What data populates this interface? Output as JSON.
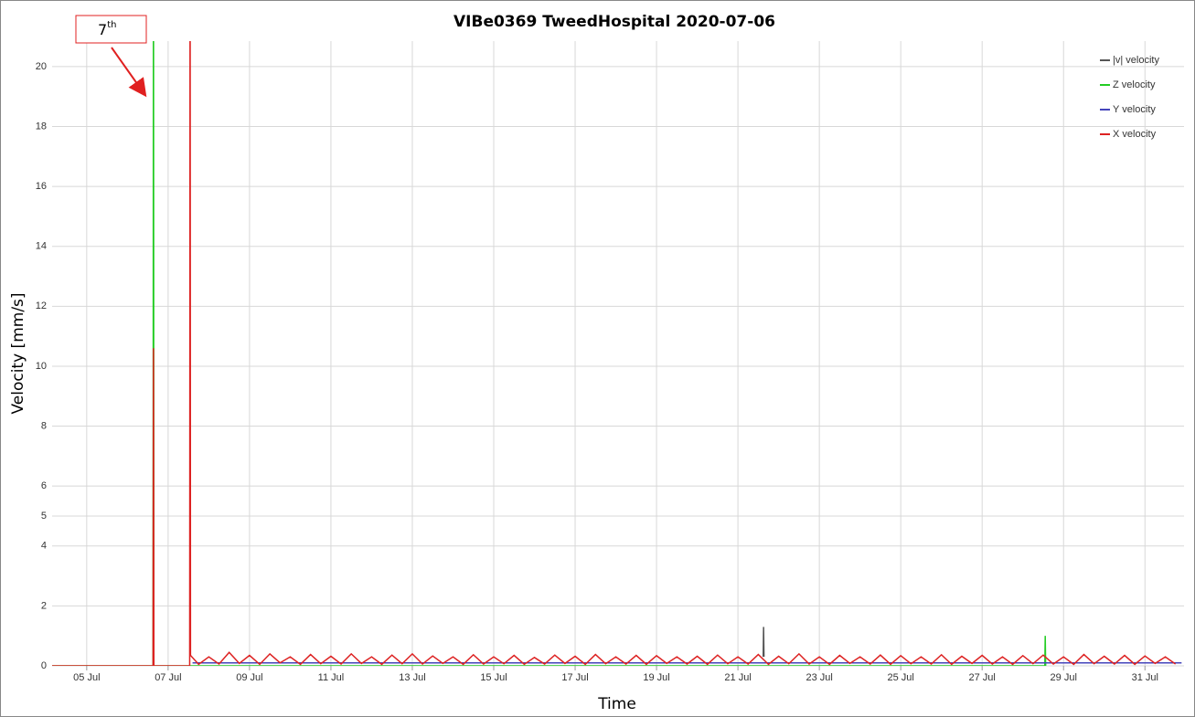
{
  "chart_data": {
    "type": "line",
    "title": "VIBe0369 TweedHospital 2020-07-06",
    "x_label": "Time",
    "y_label": "Velocity [mm/s]",
    "xlim": [
      4.15,
      31.96
    ],
    "ylim": [
      0,
      20.85
    ],
    "xticks": [
      {
        "value": 5,
        "label": "05 Jul"
      },
      {
        "value": 7,
        "label": "07 Jul"
      },
      {
        "value": 9,
        "label": "09 Jul"
      },
      {
        "value": 11,
        "label": "11 Jul"
      },
      {
        "value": 13,
        "label": "13 Jul"
      },
      {
        "value": 15,
        "label": "15 Jul"
      },
      {
        "value": 17,
        "label": "17 Jul"
      },
      {
        "value": 19,
        "label": "19 Jul"
      },
      {
        "value": 21,
        "label": "21 Jul"
      },
      {
        "value": 23,
        "label": "23 Jul"
      },
      {
        "value": 25,
        "label": "25 Jul"
      },
      {
        "value": 27,
        "label": "27 Jul"
      },
      {
        "value": 29,
        "label": "29 Jul"
      },
      {
        "value": 31,
        "label": "31 Jul"
      }
    ],
    "yticks": [
      0,
      2,
      4,
      5,
      6,
      8,
      10,
      12,
      14,
      16,
      18,
      20
    ],
    "grid": true,
    "legend": "top-right",
    "annotations": [
      {
        "text": "7",
        "sup": "th"
      }
    ],
    "series": [
      {
        "name": "|v| velocity",
        "color": "#555555",
        "x": [
          21.62,
          21.63,
          21.64
        ],
        "values": [
          0.3,
          1.3,
          0.3
        ]
      },
      {
        "name": "Z velocity",
        "color": "#22cc22",
        "x": [
          4.15,
          6.63,
          6.64,
          6.65,
          28.54,
          28.55,
          28.56
        ],
        "values": [
          0,
          0,
          25,
          0,
          0,
          1.0,
          0
        ]
      },
      {
        "name": "Y velocity",
        "color": "#4444bb",
        "x": [
          7.6,
          31.9
        ],
        "values": [
          0.1,
          0.1
        ]
      },
      {
        "name": "X velocity",
        "color": "#dd2222",
        "x": [
          4.15,
          6.63,
          6.64,
          6.65,
          7.53,
          7.54,
          7.55,
          7.75,
          8,
          8.25,
          8.5,
          8.75,
          9,
          9.25,
          9.5,
          9.75,
          10,
          10.25,
          10.5,
          10.75,
          11,
          11.25,
          11.5,
          11.75,
          12,
          12.25,
          12.5,
          12.75,
          13,
          13.25,
          13.5,
          13.75,
          14,
          14.25,
          14.5,
          14.75,
          15,
          15.25,
          15.5,
          15.75,
          16,
          16.25,
          16.5,
          16.75,
          17,
          17.25,
          17.5,
          17.75,
          18,
          18.25,
          18.5,
          18.75,
          19,
          19.25,
          19.5,
          19.75,
          20,
          20.25,
          20.5,
          20.75,
          21,
          21.25,
          21.5,
          21.75,
          22,
          22.25,
          22.5,
          22.75,
          23,
          23.25,
          23.5,
          23.75,
          24,
          24.25,
          24.5,
          24.75,
          25,
          25.25,
          25.5,
          25.75,
          26,
          26.25,
          26.5,
          26.75,
          27,
          27.25,
          27.5,
          27.75,
          28,
          28.25,
          28.5,
          28.75,
          29,
          29.25,
          29.5,
          29.75,
          30,
          30.25,
          30.5,
          30.75,
          31,
          31.25,
          31.5,
          31.75
        ],
        "values": [
          0,
          0,
          10.6,
          0,
          0,
          25,
          0.35,
          0.05,
          0.3,
          0.06,
          0.45,
          0.08,
          0.35,
          0.05,
          0.4,
          0.1,
          0.3,
          0.05,
          0.38,
          0.07,
          0.32,
          0.06,
          0.4,
          0.08,
          0.3,
          0.05,
          0.36,
          0.07,
          0.4,
          0.06,
          0.33,
          0.08,
          0.3,
          0.05,
          0.37,
          0.06,
          0.3,
          0.07,
          0.35,
          0.05,
          0.28,
          0.06,
          0.36,
          0.08,
          0.32,
          0.05,
          0.38,
          0.07,
          0.3,
          0.06,
          0.35,
          0.05,
          0.34,
          0.08,
          0.3,
          0.06,
          0.32,
          0.05,
          0.36,
          0.07,
          0.3,
          0.06,
          0.38,
          0.05,
          0.32,
          0.07,
          0.4,
          0.06,
          0.3,
          0.05,
          0.35,
          0.08,
          0.3,
          0.06,
          0.36,
          0.05,
          0.34,
          0.07,
          0.3,
          0.06,
          0.37,
          0.05,
          0.32,
          0.08,
          0.35,
          0.06,
          0.3,
          0.05,
          0.34,
          0.07,
          0.36,
          0.06,
          0.3,
          0.05,
          0.38,
          0.07,
          0.32,
          0.06,
          0.35,
          0.05,
          0.33,
          0.08,
          0.3,
          0.06
        ]
      }
    ]
  }
}
